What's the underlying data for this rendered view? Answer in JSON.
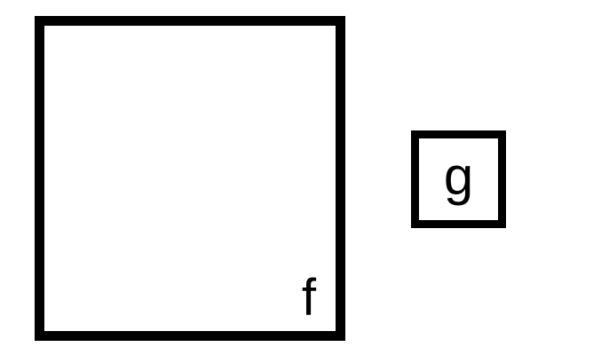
{
  "diagram": {
    "stroke_color": "#000000",
    "background_color": "#ffffff",
    "boxes": [
      {
        "id": "f",
        "label": "f",
        "relative_size": "large",
        "label_position": "bottom-right"
      },
      {
        "id": "g",
        "label": "g",
        "relative_size": "small",
        "label_position": "center"
      }
    ]
  }
}
